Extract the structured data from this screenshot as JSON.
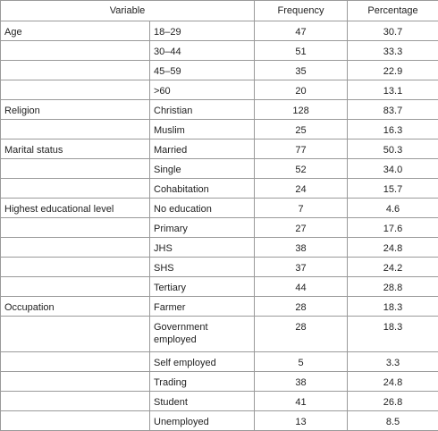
{
  "headers": {
    "variable": "Variable",
    "frequency": "Frequency",
    "percentage": "Percentage"
  },
  "rows": [
    {
      "group": "Age",
      "category": "18–29",
      "frequency": "47",
      "percentage": "30.7"
    },
    {
      "group": "",
      "category": "30–44",
      "frequency": "51",
      "percentage": "33.3"
    },
    {
      "group": "",
      "category": "45–59",
      "frequency": "35",
      "percentage": "22.9"
    },
    {
      "group": "",
      "category": ">60",
      "frequency": "20",
      "percentage": "13.1"
    },
    {
      "group": "Religion",
      "category": "Christian",
      "frequency": "128",
      "percentage": "83.7"
    },
    {
      "group": "",
      "category": "Muslim",
      "frequency": "25",
      "percentage": "16.3"
    },
    {
      "group": "Marital status",
      "category": "Married",
      "frequency": "77",
      "percentage": "50.3"
    },
    {
      "group": "",
      "category": "Single",
      "frequency": "52",
      "percentage": "34.0"
    },
    {
      "group": "",
      "category": "Cohabitation",
      "frequency": "24",
      "percentage": "15.7"
    },
    {
      "group": "Highest educational level",
      "category": "No education",
      "frequency": "7",
      "percentage": "4.6"
    },
    {
      "group": "",
      "category": "Primary",
      "frequency": "27",
      "percentage": "17.6"
    },
    {
      "group": "",
      "category": "JHS",
      "frequency": "38",
      "percentage": "24.8"
    },
    {
      "group": "",
      "category": "SHS",
      "frequency": "37",
      "percentage": "24.2"
    },
    {
      "group": "",
      "category": "Tertiary",
      "frequency": "44",
      "percentage": "28.8"
    },
    {
      "group": "Occupation",
      "category": "Farmer",
      "frequency": "28",
      "percentage": "18.3"
    },
    {
      "group": "",
      "category": "Government employed",
      "frequency": "28",
      "percentage": "18.3"
    },
    {
      "group": "",
      "category": "Self employed",
      "frequency": "5",
      "percentage": "3.3"
    },
    {
      "group": "",
      "category": "Trading",
      "frequency": "38",
      "percentage": "24.8"
    },
    {
      "group": "",
      "category": "Student",
      "frequency": "41",
      "percentage": "26.8"
    },
    {
      "group": "",
      "category": "Unemployed",
      "frequency": "13",
      "percentage": "8.5"
    }
  ]
}
